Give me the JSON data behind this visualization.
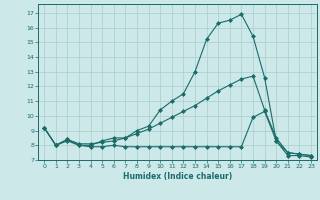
{
  "xlabel": "Humidex (Indice chaleur)",
  "background_color": "#cce8e8",
  "grid_color": "#aacccc",
  "line_color": "#1a6b6b",
  "xlim": [
    -0.5,
    23.5
  ],
  "ylim": [
    7,
    17.6
  ],
  "xticks": [
    0,
    1,
    2,
    3,
    4,
    5,
    6,
    7,
    8,
    9,
    10,
    11,
    12,
    13,
    14,
    15,
    16,
    17,
    18,
    19,
    20,
    21,
    22,
    23
  ],
  "yticks": [
    7,
    8,
    9,
    10,
    11,
    12,
    13,
    14,
    15,
    16,
    17
  ],
  "line1_x": [
    0,
    1,
    2,
    3,
    4,
    5,
    6,
    7,
    8,
    9,
    10,
    11,
    12,
    13,
    14,
    15,
    16,
    17,
    18,
    19,
    20,
    21,
    22,
    23
  ],
  "line1_y": [
    9.2,
    8.0,
    8.4,
    8.0,
    8.0,
    8.3,
    8.5,
    8.5,
    9.0,
    9.3,
    10.4,
    11.0,
    11.5,
    13.0,
    15.2,
    16.3,
    16.5,
    16.9,
    15.4,
    12.6,
    8.3,
    7.3,
    7.3,
    7.2
  ],
  "line2_x": [
    0,
    1,
    2,
    3,
    4,
    5,
    6,
    7,
    8,
    9,
    10,
    11,
    12,
    13,
    14,
    15,
    16,
    17,
    18,
    19,
    20,
    21,
    22,
    23
  ],
  "line2_y": [
    9.2,
    8.0,
    8.4,
    8.1,
    8.1,
    8.2,
    8.3,
    8.5,
    8.8,
    9.1,
    9.5,
    9.9,
    10.3,
    10.7,
    11.2,
    11.7,
    12.1,
    12.5,
    12.7,
    10.4,
    8.5,
    7.5,
    7.4,
    7.3
  ],
  "line3_x": [
    0,
    1,
    2,
    3,
    4,
    5,
    6,
    7,
    8,
    9,
    10,
    11,
    12,
    13,
    14,
    15,
    16,
    17,
    18,
    19,
    20,
    21,
    22,
    23
  ],
  "line3_y": [
    9.2,
    8.0,
    8.3,
    8.0,
    7.9,
    7.9,
    8.0,
    7.9,
    7.9,
    7.9,
    7.9,
    7.9,
    7.9,
    7.9,
    7.9,
    7.9,
    7.9,
    7.9,
    9.9,
    10.3,
    8.3,
    7.5,
    7.4,
    7.3
  ]
}
